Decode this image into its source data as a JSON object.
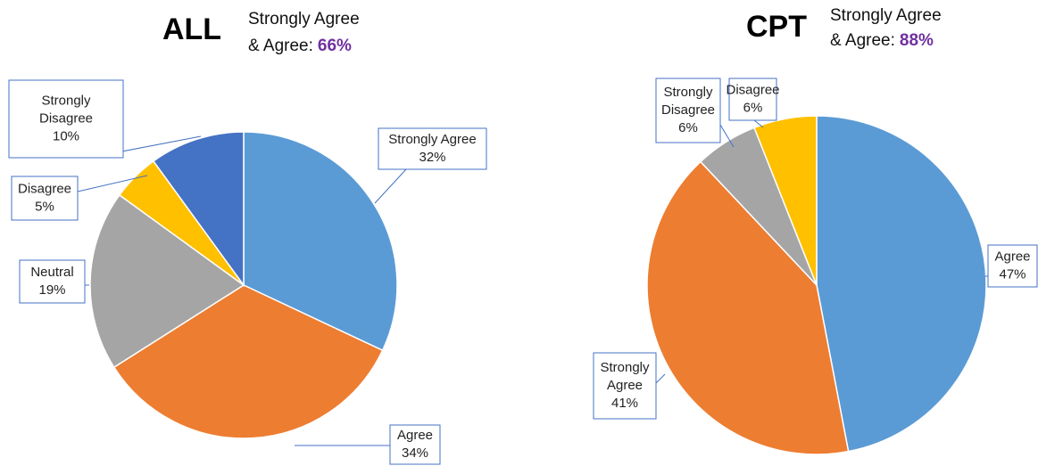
{
  "chart_data": [
    {
      "type": "pie",
      "title": "ALL",
      "summary_label": [
        "Strongly Agree",
        "& Agree:"
      ],
      "summary_value": "66%",
      "categories": [
        "Strongly Agree",
        "Agree",
        "Neutral",
        "Disagree",
        "Strongly Disagree"
      ],
      "values": [
        32,
        34,
        19,
        5,
        10
      ],
      "value_labels": [
        "32%",
        "34%",
        "19%",
        "5%",
        "10%"
      ],
      "colors": [
        "#5b9bd5",
        "#ed7d31",
        "#a5a5a5",
        "#ffc000",
        "#4472c4"
      ]
    },
    {
      "type": "pie",
      "title": "CPT",
      "summary_label": [
        "Strongly Agree",
        "& Agree:"
      ],
      "summary_value": "88%",
      "categories": [
        "Agree",
        "Strongly Agree",
        "Strongly Disagree",
        "Disagree"
      ],
      "values": [
        47,
        41,
        6,
        6
      ],
      "value_labels": [
        "47%",
        "41%",
        "6%",
        "6%"
      ],
      "colors": [
        "#5b9bd5",
        "#ed7d31",
        "#a5a5a5",
        "#ffc000"
      ]
    }
  ]
}
